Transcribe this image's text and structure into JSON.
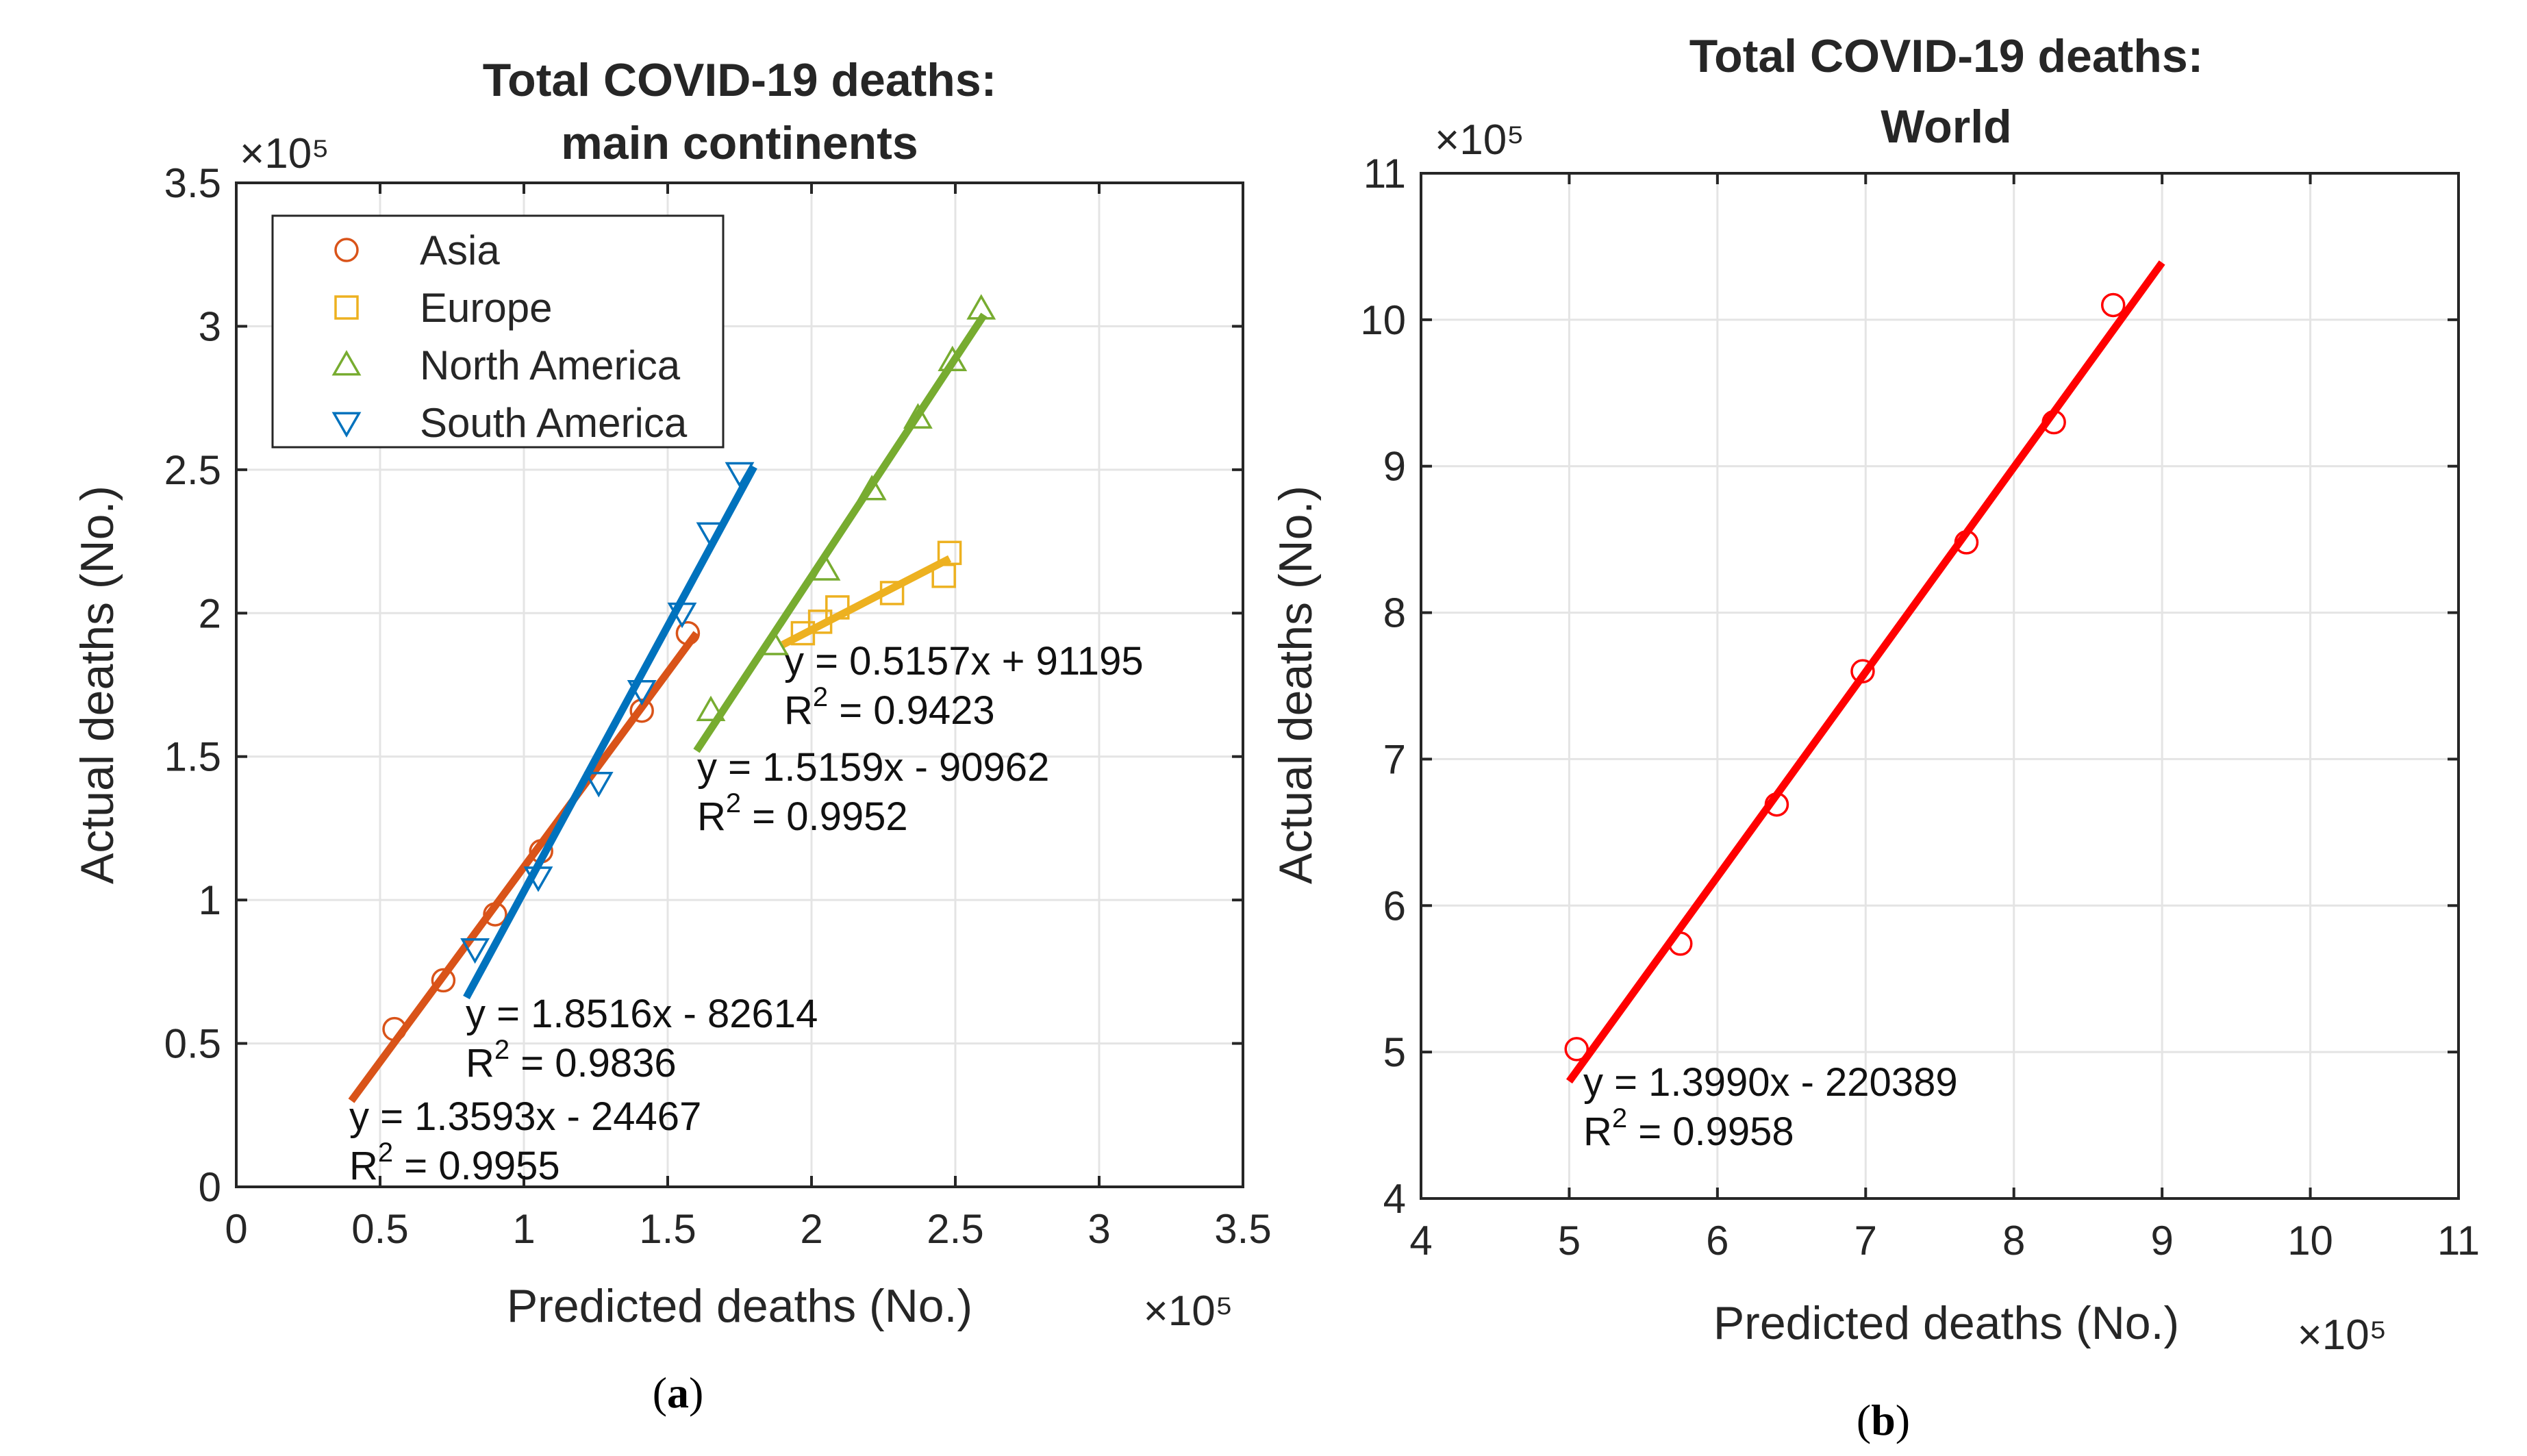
{
  "chart_data": [
    {
      "type": "scatter",
      "title": [
        "Total COVID-19 deaths:",
        "main continents"
      ],
      "xlabel": "Predicted deaths (No.)",
      "ylabel": "Actual deaths (No.)",
      "x_multiplier": "×10⁵",
      "y_multiplier": "×10⁵",
      "xlim": [
        0,
        3.5
      ],
      "ylim": [
        0,
        3.5
      ],
      "xticks": [
        "0",
        "0.5",
        "1",
        "1.5",
        "2",
        "2.5",
        "3",
        "3.5"
      ],
      "yticks": [
        "0",
        "0.5",
        "1",
        "1.5",
        "2",
        "2.5",
        "3",
        "3.5"
      ],
      "grid": true,
      "legend_position": "top-left",
      "caption": "(a)",
      "series": [
        {
          "name": "Asia",
          "marker": "circle",
          "color": "#d95319",
          "x": [
            0.55,
            0.72,
            0.9,
            1.06,
            1.41,
            1.57
          ],
          "y": [
            0.55,
            0.72,
            0.95,
            1.17,
            1.66,
            1.93
          ],
          "fit": {
            "x": [
              0.4,
              1.6
            ],
            "y": [
              0.3,
              1.93
            ]
          },
          "equation": "y = 1.3593x - 24467",
          "r2": "R² = 0.9955"
        },
        {
          "name": "Europe",
          "marker": "square",
          "color": "#edb120",
          "x": [
            1.97,
            2.03,
            2.09,
            2.28,
            2.46,
            2.48
          ],
          "y": [
            1.93,
            1.97,
            2.02,
            2.07,
            2.13,
            2.21
          ],
          "fit": {
            "x": [
              1.9,
              2.48
            ],
            "y": [
              1.89,
              2.19
            ]
          },
          "equation": "y = 0.5157x + 91195",
          "r2": "R² = 0.9423"
        },
        {
          "name": "North America",
          "marker": "triangle-up",
          "color": "#77ac30",
          "x": [
            1.65,
            1.87,
            2.05,
            2.21,
            2.37,
            2.49,
            2.59
          ],
          "y": [
            1.66,
            1.89,
            2.15,
            2.43,
            2.68,
            2.88,
            3.06
          ],
          "fit": {
            "x": [
              1.6,
              2.6
            ],
            "y": [
              1.52,
              3.04
            ]
          },
          "equation": "y = 1.5159x - 90962",
          "r2": "R² = 0.9952"
        },
        {
          "name": "South America",
          "marker": "triangle-down",
          "color": "#0072bd",
          "x": [
            0.83,
            1.05,
            1.26,
            1.41,
            1.55,
            1.65,
            1.75
          ],
          "y": [
            0.83,
            1.08,
            1.41,
            1.73,
            2.0,
            2.28,
            2.49
          ],
          "fit": {
            "x": [
              0.8,
              1.8
            ],
            "y": [
              0.66,
              2.51
            ]
          },
          "equation": "y = 1.8516x - 82614",
          "r2": "R² = 0.9836"
        }
      ]
    },
    {
      "type": "scatter",
      "title": [
        "Total COVID-19 deaths:",
        "World"
      ],
      "xlabel": "Predicted deaths (No.)",
      "ylabel": "Actual deaths (No.)",
      "x_multiplier": "×10⁵",
      "y_multiplier": "×10⁵",
      "xlim": [
        4,
        11
      ],
      "ylim": [
        4,
        11
      ],
      "xticks": [
        "4",
        "5",
        "6",
        "7",
        "8",
        "9",
        "10",
        "11"
      ],
      "yticks": [
        "4",
        "5",
        "6",
        "7",
        "8",
        "9",
        "10",
        "11"
      ],
      "grid": true,
      "caption": "(b)",
      "series": [
        {
          "name": "World",
          "marker": "circle",
          "color": "#ff0000",
          "x": [
            5.05,
            5.75,
            6.4,
            6.98,
            7.68,
            8.27,
            8.67
          ],
          "y": [
            5.02,
            5.74,
            6.69,
            7.6,
            8.48,
            9.3,
            10.1
          ],
          "fit": {
            "x": [
              5.0,
              9.0
            ],
            "y": [
              4.8,
              10.39
            ]
          },
          "equation": "y = 1.3990x - 220389",
          "r2": "R² = 0.9958"
        }
      ]
    }
  ]
}
